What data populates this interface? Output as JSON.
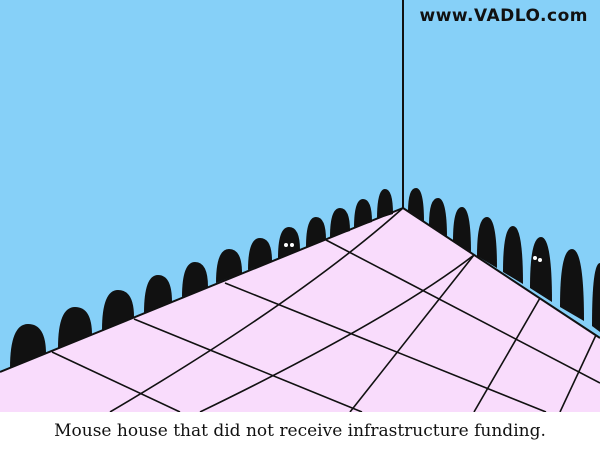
{
  "watermark": "www.VADLO.com",
  "caption": "Mouse house that did not receive infrastructure funding.",
  "colors": {
    "wall": "#86d0f8",
    "floor": "#f9dcfc",
    "line": "#111111",
    "caption_bg": "#ffffff"
  }
}
